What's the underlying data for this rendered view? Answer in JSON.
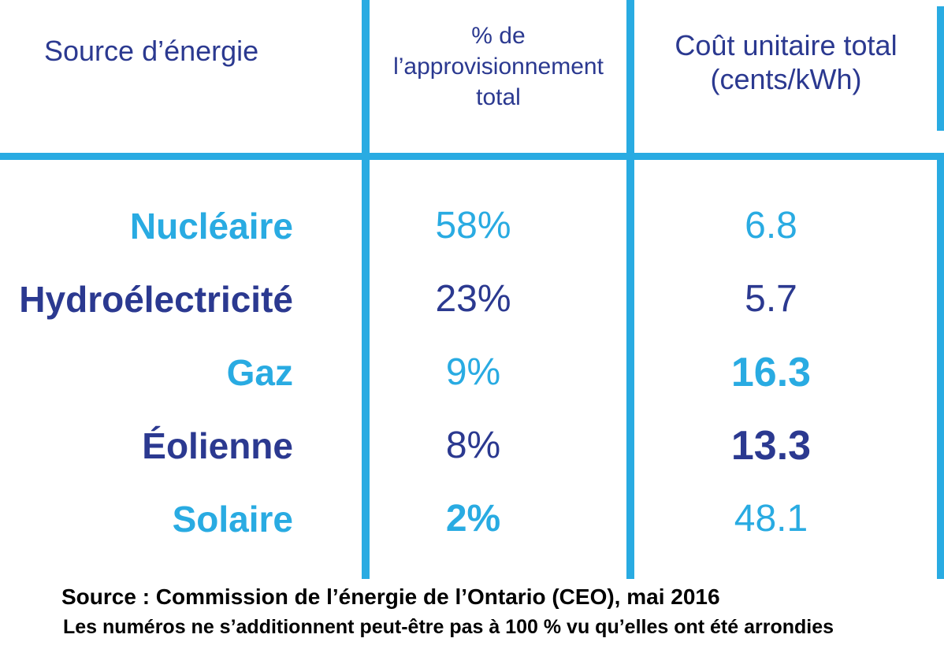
{
  "colors": {
    "light_blue": "#29ABE2",
    "dark_navy": "#2B3990",
    "footer_text": "#000000"
  },
  "chart_data": {
    "type": "table",
    "title": "",
    "columns": [
      "Source d’énergie",
      "% de l’approvisionnement total",
      "Coût unitaire total (cents/kWh)"
    ],
    "rows": [
      [
        "Nucléaire",
        58,
        6.8
      ],
      [
        "Hydroélectricité",
        23,
        5.7
      ],
      [
        "Gaz",
        9,
        16.3
      ],
      [
        "Éolienne",
        8,
        13.3
      ],
      [
        "Solaire",
        2,
        48.1
      ]
    ],
    "units": {
      "supply": "%",
      "unit_cost": "cents/kWh"
    },
    "source": "Commission de l’énergie de l’Ontario (CEO), mai 2016"
  },
  "table": {
    "headers": [
      {
        "label": "Source d’énergie"
      },
      {
        "label": "% de l’approvisionnement total"
      },
      {
        "label": "Coût unitaire total (cents/kWh)"
      }
    ],
    "rows": [
      {
        "source": "Nucléaire",
        "supply_pct": "58%",
        "unit_cost": "6.8",
        "tone": "light",
        "pct_bold": false,
        "cost_bold": false
      },
      {
        "source": "Hydroélectricité",
        "supply_pct": "23%",
        "unit_cost": "5.7",
        "tone": "dark",
        "pct_bold": false,
        "cost_bold": false
      },
      {
        "source": "Gaz",
        "supply_pct": "9%",
        "unit_cost": "16.3",
        "tone": "light",
        "pct_bold": false,
        "cost_bold": true
      },
      {
        "source": "Éolienne",
        "supply_pct": "8%",
        "unit_cost": "13.3",
        "tone": "dark",
        "pct_bold": false,
        "cost_bold": true
      },
      {
        "source": "Solaire",
        "supply_pct": "2%",
        "unit_cost": "48.1",
        "tone": "light",
        "pct_bold": true,
        "cost_bold": false
      }
    ]
  },
  "footer": {
    "source_line": "Source : Commission de l’énergie de l’Ontario (CEO), mai 2016",
    "note_line": "Les numéros ne s’additionnent peut-être pas à 100 % vu qu’elles ont été arrondies"
  }
}
